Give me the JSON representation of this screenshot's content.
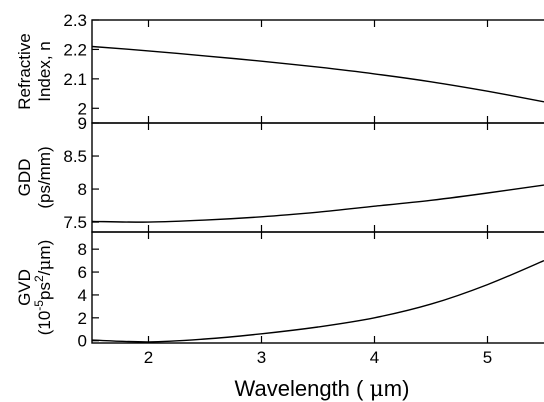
{
  "chart_data": {
    "type": "line",
    "shared_x": {
      "label_parts": [
        "Wavelength ( ",
        "μ",
        "m)"
      ],
      "range": [
        1.5,
        5.5
      ],
      "ticks": [
        2,
        3,
        4,
        5
      ],
      "tick_labels": [
        "2",
        "3",
        "4",
        "5"
      ]
    },
    "panels": [
      {
        "id": "refractive-index",
        "ylabel_lines": [
          "Refractive",
          "Index, n"
        ],
        "ylim": [
          1.95,
          2.3
        ],
        "yticks": [
          2,
          2.1,
          2.2,
          2.3
        ],
        "ytick_labels": [
          "2",
          "2.1",
          "2.2",
          "2.3"
        ],
        "series": [
          {
            "x": [
              1.5,
              2.0,
              2.5,
              3.0,
              3.5,
              4.0,
              4.5,
              5.0,
              5.5
            ],
            "y": [
              2.21,
              2.195,
              2.178,
              2.16,
              2.14,
              2.117,
              2.09,
              2.058,
              2.022
            ]
          }
        ]
      },
      {
        "id": "gdd",
        "ylabel_lines": [
          "GDD",
          "(ps/mm)"
        ],
        "ylim": [
          7.35,
          9.0
        ],
        "yticks": [
          7.5,
          8,
          8.5,
          9
        ],
        "ytick_labels": [
          "7.5",
          "8",
          "8.5",
          "9"
        ],
        "series": [
          {
            "x": [
              1.5,
              2.0,
              2.5,
              3.0,
              3.5,
              4.0,
              4.5,
              5.0,
              5.5
            ],
            "y": [
              7.51,
              7.5,
              7.53,
              7.58,
              7.65,
              7.74,
              7.83,
              7.94,
              8.06
            ]
          }
        ]
      },
      {
        "id": "gvd",
        "ylabel_lines": [
          "GVD",
          "(10-5ps2/μm)"
        ],
        "ylim": [
          -0.2,
          9.5
        ],
        "yticks": [
          0,
          2,
          4,
          6,
          8
        ],
        "ytick_labels": [
          "0",
          "2",
          "4",
          "6",
          "8"
        ],
        "series": [
          {
            "x": [
              1.5,
              2.0,
              2.5,
              3.0,
              3.5,
              4.0,
              4.5,
              5.0,
              5.5
            ],
            "y": [
              0.05,
              -0.1,
              0.15,
              0.6,
              1.2,
              2.0,
              3.2,
              4.9,
              7.0
            ]
          }
        ]
      }
    ]
  }
}
